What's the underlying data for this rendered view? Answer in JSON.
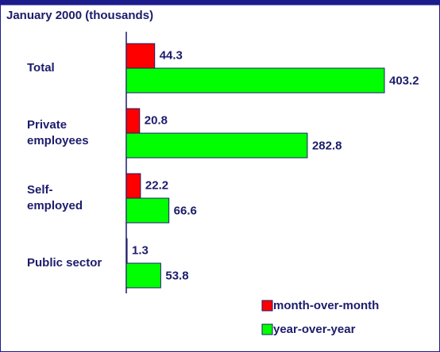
{
  "chart_data": {
    "type": "bar",
    "orientation": "horizontal",
    "title": "January 2000 (thousands)",
    "categories": [
      "Total",
      "Private employees",
      "Self-employed",
      "Public sector"
    ],
    "series": [
      {
        "name": "month-over-month",
        "color": "#ff0000",
        "values": [
          44.3,
          20.8,
          22.2,
          1.3
        ]
      },
      {
        "name": "year-over-year",
        "color": "#00ff00",
        "values": [
          403.2,
          282.8,
          66.6,
          53.8
        ]
      }
    ],
    "legend": "lower right"
  }
}
